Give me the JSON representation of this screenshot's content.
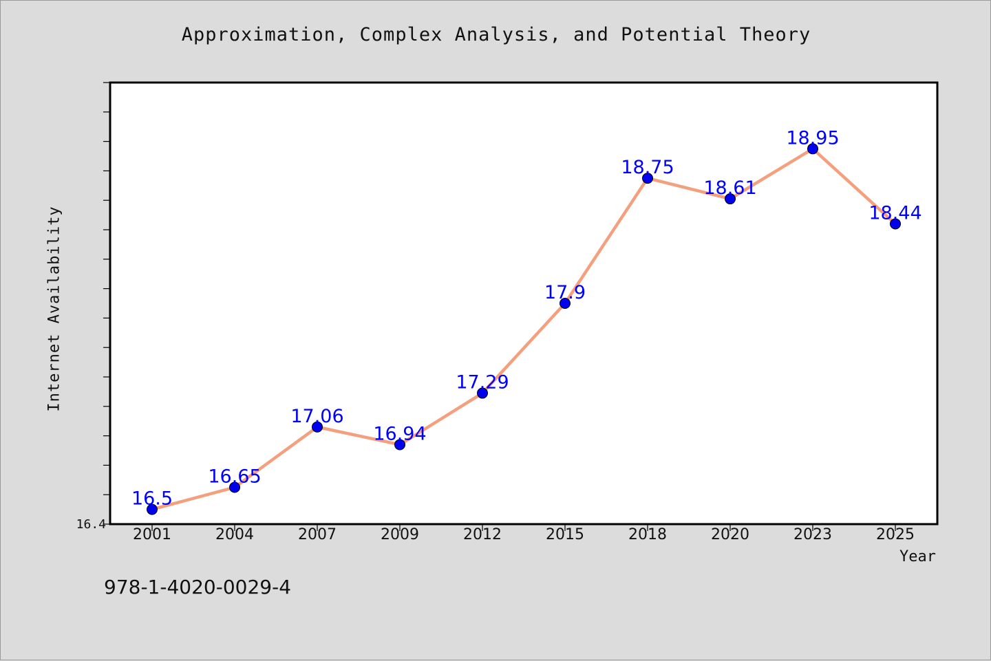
{
  "chart_data": {
    "type": "line",
    "title": "Approximation, Complex Analysis, and Potential Theory",
    "xlabel": "Year",
    "ylabel": "Internet Availability",
    "categories": [
      "2001",
      "2004",
      "2007",
      "2009",
      "2012",
      "2015",
      "2018",
      "2020",
      "2023",
      "2025"
    ],
    "series": [
      {
        "values": [
          16.5,
          16.65,
          17.06,
          16.94,
          17.29,
          17.9,
          18.75,
          18.61,
          18.95,
          18.44
        ]
      }
    ],
    "data_labels": [
      "16.5",
      "16.65",
      "17.06",
      "16.94",
      "17.29",
      "17.9",
      "18.75",
      "18.61",
      "18.95",
      "18.44"
    ],
    "ylim": [
      16.4,
      19.4
    ],
    "y_tick_label": "16.4",
    "grid": false,
    "line_color": "#f4a07e",
    "marker_color": "#0000ee",
    "label_color": "#0000ff"
  },
  "footer": {
    "isbn": "978-1-4020-0029-4"
  }
}
